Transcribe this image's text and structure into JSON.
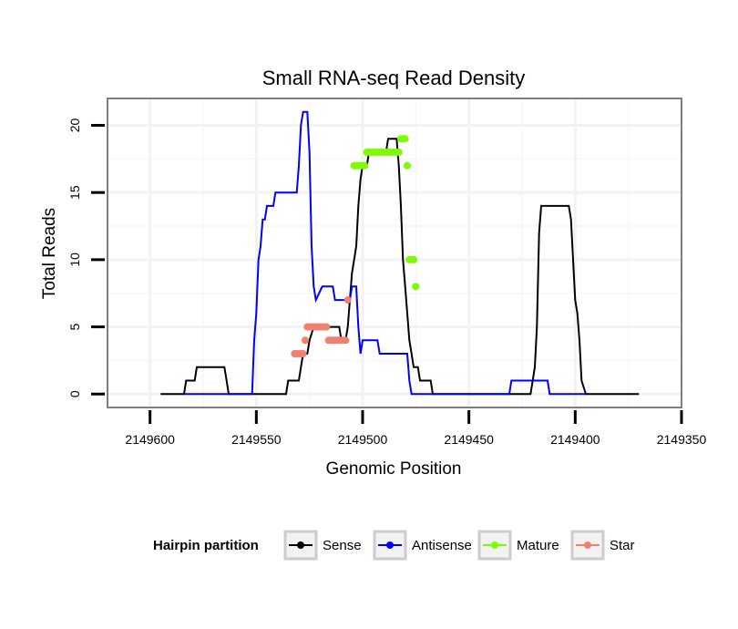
{
  "chart_data": {
    "type": "line",
    "title": "Small RNA-seq Read Density",
    "xlabel": "Genomic Position",
    "ylabel": "Total Reads",
    "x_reversed": true,
    "xlim": [
      2149620,
      2149350
    ],
    "ylim": [
      -1,
      22
    ],
    "x_ticks": [
      2149600,
      2149550,
      2149500,
      2149450,
      2149400,
      2149350
    ],
    "x_tick_labels": [
      "2149600",
      "2149550",
      "2149500",
      "2149450",
      "2149400",
      "2149350"
    ],
    "y_ticks": [
      0,
      5,
      10,
      15,
      20
    ],
    "y_tick_labels": [
      "0",
      "5",
      "10",
      "15",
      "20"
    ],
    "grid": true,
    "legend": {
      "title": "Hairpin partition",
      "position": "bottom",
      "entries": [
        {
          "label": "Sense",
          "color": "#000000"
        },
        {
          "label": "Antisense",
          "color": "#0000ff"
        },
        {
          "label": "Mature",
          "color": "#7cfc00"
        },
        {
          "label": "Star",
          "color": "#f08070"
        }
      ]
    },
    "series": [
      {
        "name": "Sense",
        "color": "#000000",
        "kind": "line",
        "points": [
          [
            2149595,
            0
          ],
          [
            2149584,
            0
          ],
          [
            2149583,
            1
          ],
          [
            2149579,
            1
          ],
          [
            2149578,
            2
          ],
          [
            2149565,
            2
          ],
          [
            2149564,
            1
          ],
          [
            2149563,
            0
          ],
          [
            2149536,
            0
          ],
          [
            2149535,
            1
          ],
          [
            2149530,
            1
          ],
          [
            2149529,
            2
          ],
          [
            2149528,
            3
          ],
          [
            2149526,
            3
          ],
          [
            2149525,
            4
          ],
          [
            2149523,
            5
          ],
          [
            2149511,
            5
          ],
          [
            2149510,
            4
          ],
          [
            2149508,
            4
          ],
          [
            2149507,
            5
          ],
          [
            2149506,
            7
          ],
          [
            2149505,
            9
          ],
          [
            2149504,
            10
          ],
          [
            2149503,
            11
          ],
          [
            2149502,
            14
          ],
          [
            2149501,
            16
          ],
          [
            2149500,
            17
          ],
          [
            2149498,
            17
          ],
          [
            2149497,
            18
          ],
          [
            2149489,
            18
          ],
          [
            2149488,
            19
          ],
          [
            2149484,
            19
          ],
          [
            2149483,
            17
          ],
          [
            2149482,
            14
          ],
          [
            2149481,
            10
          ],
          [
            2149480,
            8
          ],
          [
            2149479,
            6
          ],
          [
            2149478,
            4
          ],
          [
            2149477,
            3
          ],
          [
            2149476,
            2
          ],
          [
            2149474,
            2
          ],
          [
            2149473,
            1
          ],
          [
            2149468,
            1
          ],
          [
            2149467,
            0
          ],
          [
            2149430,
            0
          ],
          [
            2149421,
            0
          ],
          [
            2149420,
            1
          ],
          [
            2149419,
            2
          ],
          [
            2149418,
            5
          ],
          [
            2149417,
            12
          ],
          [
            2149416,
            14
          ],
          [
            2149403,
            14
          ],
          [
            2149402,
            13
          ],
          [
            2149401,
            10
          ],
          [
            2149400,
            7
          ],
          [
            2149399,
            6
          ],
          [
            2149398,
            4
          ],
          [
            2149397,
            1
          ],
          [
            2149395,
            0
          ],
          [
            2149370,
            0
          ]
        ]
      },
      {
        "name": "Antisense",
        "color": "#0000ff",
        "kind": "line",
        "points": [
          [
            2149584,
            0
          ],
          [
            2149557,
            0
          ],
          [
            2149552,
            0
          ],
          [
            2149551,
            4
          ],
          [
            2149550,
            6
          ],
          [
            2149549,
            10
          ],
          [
            2149548,
            11
          ],
          [
            2149547,
            13
          ],
          [
            2149546,
            13
          ],
          [
            2149545,
            14
          ],
          [
            2149542,
            14
          ],
          [
            2149541,
            15
          ],
          [
            2149531,
            15
          ],
          [
            2149530,
            17
          ],
          [
            2149529,
            20
          ],
          [
            2149528,
            21
          ],
          [
            2149526,
            21
          ],
          [
            2149525,
            18
          ],
          [
            2149524,
            11
          ],
          [
            2149523,
            8
          ],
          [
            2149522,
            7
          ],
          [
            2149519,
            8
          ],
          [
            2149514,
            8
          ],
          [
            2149513,
            7
          ],
          [
            2149506,
            7
          ],
          [
            2149505,
            8
          ],
          [
            2149503,
            8
          ],
          [
            2149502,
            5
          ],
          [
            2149501,
            3
          ],
          [
            2149500,
            4
          ],
          [
            2149493,
            4
          ],
          [
            2149492,
            3
          ],
          [
            2149479,
            3
          ],
          [
            2149478,
            1
          ],
          [
            2149477,
            0
          ],
          [
            2149431,
            0
          ],
          [
            2149430,
            1
          ],
          [
            2149413,
            1
          ],
          [
            2149412,
            0
          ],
          [
            2149395,
            0
          ]
        ]
      },
      {
        "name": "Mature",
        "color": "#7cfc00",
        "kind": "points",
        "points": [
          [
            2149504,
            17
          ],
          [
            2149503,
            17
          ],
          [
            2149502,
            17
          ],
          [
            2149501,
            17
          ],
          [
            2149500,
            17
          ],
          [
            2149499,
            17
          ],
          [
            2149498,
            18
          ],
          [
            2149497,
            18
          ],
          [
            2149496,
            18
          ],
          [
            2149495,
            18
          ],
          [
            2149494,
            18
          ],
          [
            2149493,
            18
          ],
          [
            2149492,
            18
          ],
          [
            2149491,
            18
          ],
          [
            2149490,
            18
          ],
          [
            2149489,
            18
          ],
          [
            2149488,
            18
          ],
          [
            2149487,
            18
          ],
          [
            2149486,
            18
          ],
          [
            2149485,
            18
          ],
          [
            2149484,
            18
          ],
          [
            2149483,
            18
          ],
          [
            2149482,
            19
          ],
          [
            2149481,
            19
          ],
          [
            2149480,
            19
          ],
          [
            2149479,
            17
          ],
          [
            2149478,
            10
          ],
          [
            2149477,
            10
          ],
          [
            2149476,
            10
          ],
          [
            2149475,
            8
          ]
        ]
      },
      {
        "name": "Star",
        "color": "#f08070",
        "kind": "points",
        "points": [
          [
            2149532,
            3
          ],
          [
            2149531,
            3
          ],
          [
            2149530,
            3
          ],
          [
            2149529,
            3
          ],
          [
            2149528,
            3
          ],
          [
            2149527,
            4
          ],
          [
            2149526,
            5
          ],
          [
            2149525,
            5
          ],
          [
            2149524,
            5
          ],
          [
            2149523,
            5
          ],
          [
            2149522,
            5
          ],
          [
            2149521,
            5
          ],
          [
            2149520,
            5
          ],
          [
            2149519,
            5
          ],
          [
            2149518,
            5
          ],
          [
            2149517,
            5
          ],
          [
            2149516,
            4
          ],
          [
            2149515,
            4
          ],
          [
            2149514,
            4
          ],
          [
            2149513,
            4
          ],
          [
            2149512,
            4
          ],
          [
            2149511,
            4
          ],
          [
            2149510,
            4
          ],
          [
            2149509,
            4
          ],
          [
            2149508,
            4
          ],
          [
            2149507,
            7
          ]
        ]
      }
    ]
  }
}
